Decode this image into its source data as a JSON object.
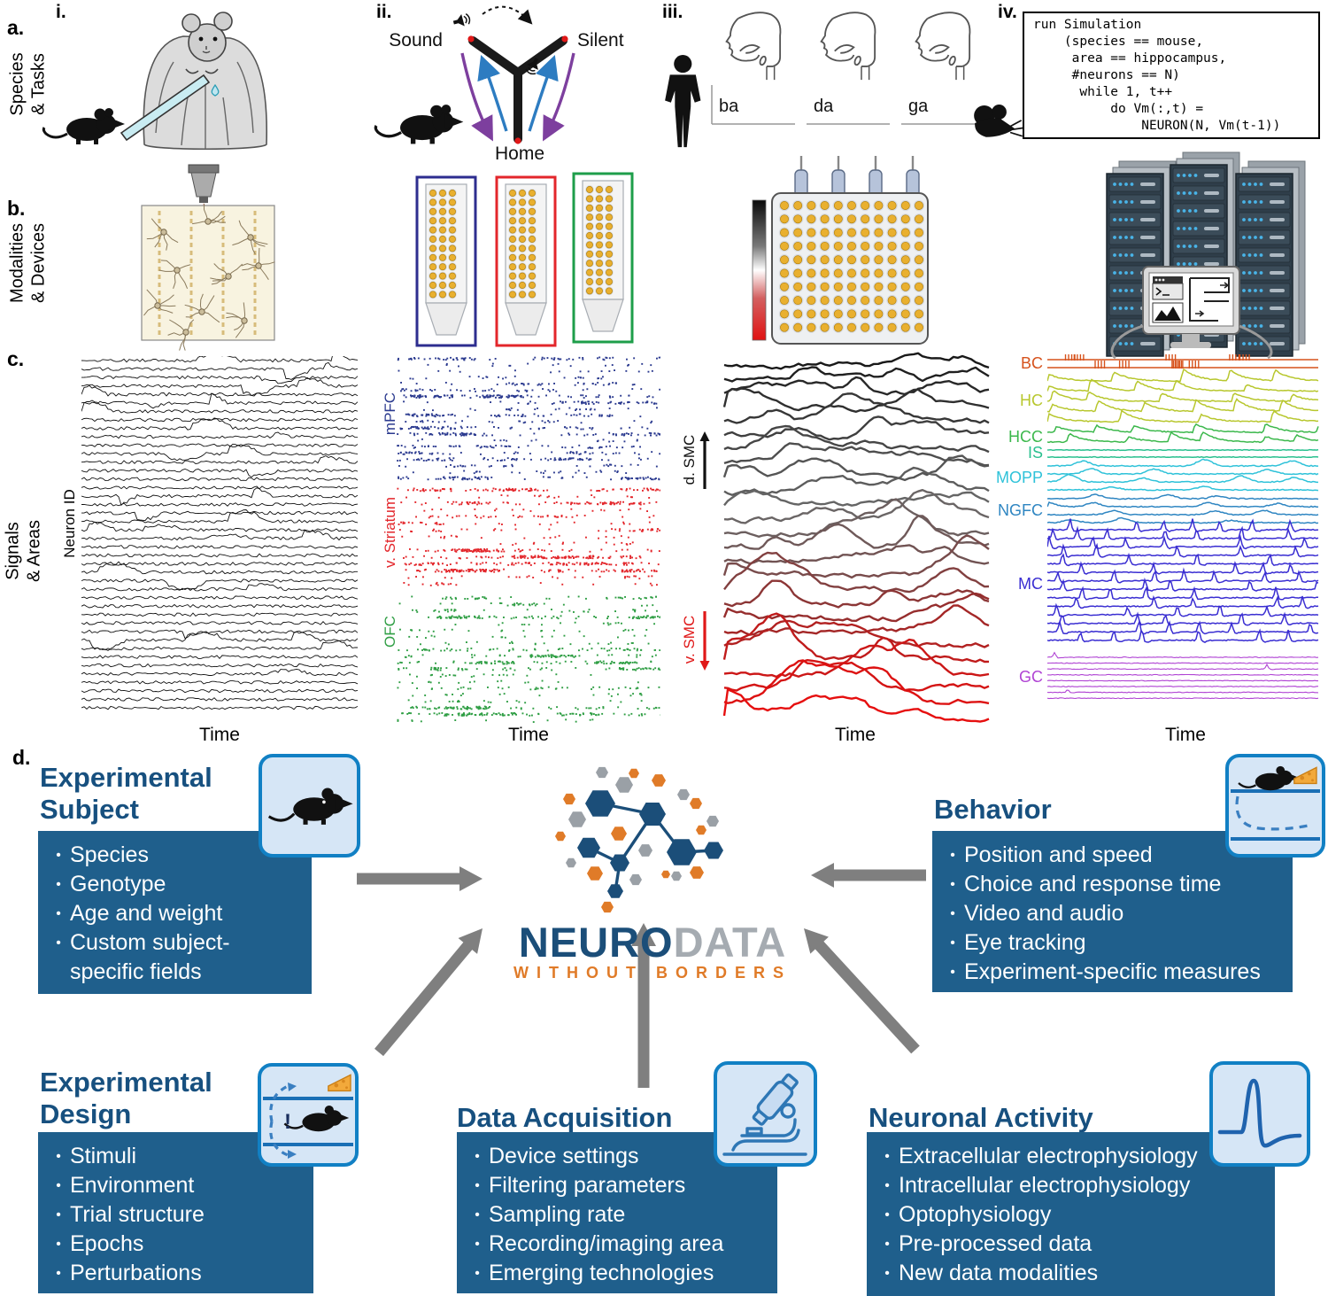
{
  "figure": {
    "panel_a_label": "a.",
    "panel_b_label": "b.",
    "panel_c_label": "c.",
    "panel_d_label": "d.",
    "col_i_label": "i.",
    "col_ii_label": "ii.",
    "col_iii_label": "iii.",
    "col_iv_label": "iv.",
    "row_a_side": "Species\n& Tasks",
    "row_b_side": "Modalities\n& Devices",
    "row_c_side": "Signals\n& Areas"
  },
  "maze": {
    "sound": "Sound",
    "silent": "Silent",
    "home": "Home"
  },
  "speech": {
    "syllables": [
      "ba",
      "da",
      "ga"
    ]
  },
  "simulation_code": "run Simulation\n    (species == mouse,\n     area == hippocampus,\n     #neurons == N)\n      while 1, t++\n          do Vm(:,t) =\n              NEURON(N, Vm(t-1))",
  "signals": {
    "time_label": "Time",
    "ephys": {
      "ylabel": "Neuron ID"
    },
    "raster": {
      "bands": [
        {
          "label": "mPFC",
          "color": "#2b3a8f"
        },
        {
          "label": "v. Striatum",
          "color": "#e3262b"
        },
        {
          "label": "OFC",
          "color": "#2f9e44"
        }
      ]
    },
    "widefield": {
      "dorsal_label": "d. SMC",
      "ventral_label": "v. SMC",
      "dorsal_color": "#111111",
      "ventral_color": "#e01818"
    },
    "celltypes": {
      "groups": [
        {
          "label": "BC",
          "color": "#d6521c"
        },
        {
          "label": "HC",
          "color": "#b8c72e"
        },
        {
          "label": "HCC",
          "color": "#3cb84c"
        },
        {
          "label": "IS",
          "color": "#2ac08f"
        },
        {
          "label": "MOPP",
          "color": "#2fc2d9"
        },
        {
          "label": "NGFC",
          "color": "#2f86c2"
        },
        {
          "label": "MC",
          "color": "#3a2ed2"
        },
        {
          "label": "GC",
          "color": "#b044d4"
        }
      ]
    }
  },
  "nwb": {
    "logo": {
      "neuro": "NEURO",
      "data": "DATA",
      "tagline": "WITHOUT BORDERS"
    },
    "design_icon_mark": "!",
    "boxes": {
      "subject": {
        "title": "Experimental Subject",
        "items": [
          "Species",
          "Genotype",
          "Age and weight",
          "Custom subject-specific fields"
        ]
      },
      "behavior": {
        "title": "Behavior",
        "items": [
          "Position and speed",
          "Choice and response time",
          "Video and audio",
          "Eye tracking",
          "Experiment-specific measures"
        ]
      },
      "design": {
        "title": "Experimental Design",
        "items": [
          "Stimuli",
          "Environment",
          "Trial structure",
          "Epochs",
          "Perturbations"
        ]
      },
      "acquisition": {
        "title": "Data Acquisition",
        "items": [
          "Device settings",
          "Filtering parameters",
          "Sampling rate",
          "Recording/imaging area",
          "Emerging technologies"
        ]
      },
      "activity": {
        "title": "Neuronal Activity",
        "items": [
          "Extracellular electrophysiology",
          "Intracellular electrophysiology",
          "Optophysiology",
          "Pre-processed data",
          "New data modalities"
        ]
      }
    }
  },
  "colors": {
    "box_blue": "#1f5f8c",
    "title_blue": "#17507f",
    "tile_fill": "#d6e6f6",
    "tile_border": "#1180c4",
    "arrow_gray": "#7f7f7f",
    "logo_blue": "#1b4e79",
    "logo_gray": "#a5abb1",
    "logo_orange": "#e07b28",
    "hex_gray": "#9aa0a6"
  }
}
